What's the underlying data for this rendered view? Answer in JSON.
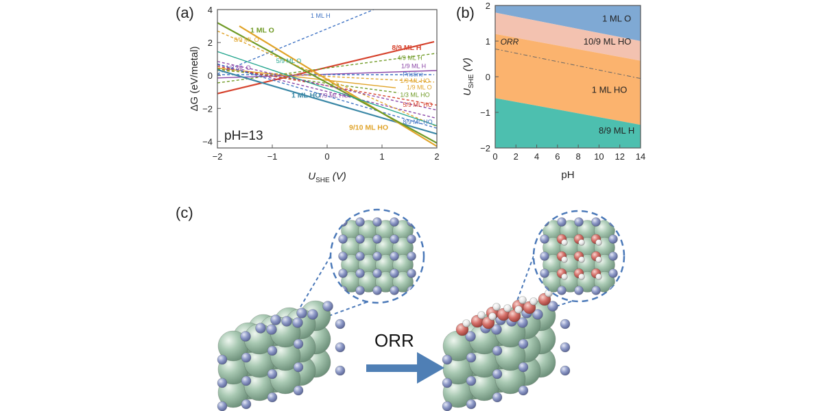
{
  "panels": {
    "a": "(a)",
    "b": "(b)",
    "c": "(c)"
  },
  "chart_data": [
    {
      "id": "a",
      "type": "line",
      "xlabel_main": "U",
      "xlabel_sub": "SHE",
      "xlabel_unit": "(V)",
      "ylabel": "ΔG (eV/metal)",
      "xlim": [
        -2,
        2
      ],
      "ylim": [
        -4.4,
        4
      ],
      "xticks": [
        -2,
        -1,
        0,
        1,
        2
      ],
      "yticks": [
        -4,
        -2,
        0,
        2,
        4
      ],
      "inset_text": "pH=13",
      "series": [
        {
          "name": "1 ML H",
          "color": "#3f73c4",
          "dash": true,
          "bold": false,
          "x": [
            -2,
            0.85
          ],
          "y": [
            0.1,
            4.0
          ],
          "label_x": -0.3,
          "label_y": 3.5
        },
        {
          "name": "8/9 ML H",
          "color": "#d6432e",
          "dash": false,
          "bold": true,
          "x": [
            -2,
            1.95
          ],
          "y": [
            -1.1,
            2.05
          ],
          "label_x": 1.18,
          "label_y": 1.55
        },
        {
          "name": "4/9 ML H",
          "color": "#6f9a25",
          "dash": true,
          "bold": false,
          "x": [
            -2,
            2
          ],
          "y": [
            -0.45,
            1.35
          ],
          "label_x": 1.28,
          "label_y": 0.95
        },
        {
          "name": "1/9 ML H",
          "color": "#8a45a6",
          "dash": false,
          "bold": false,
          "x": [
            -2,
            2
          ],
          "y": [
            -0.15,
            0.3
          ],
          "label_x": 1.35,
          "label_y": 0.45
        },
        {
          "name": "Pristine",
          "color": "#3f73c4",
          "dash": true,
          "bold": false,
          "x": [
            -2,
            1.95
          ],
          "y": [
            0.05,
            0.05
          ],
          "label_x": 1.38,
          "label_y": -0.05
        },
        {
          "name": "1/9 ML HO",
          "color": "#e0a328",
          "dash": true,
          "bold": false,
          "x": [
            -2,
            1.95
          ],
          "y": [
            0.3,
            -0.4
          ],
          "label_x": 1.33,
          "label_y": -0.45
        },
        {
          "name": "1/9 ML O",
          "color": "#e0a328",
          "dash": false,
          "bold": false,
          "x": [
            -2,
            1.25
          ],
          "y": [
            0.45,
            -0.75
          ],
          "label_x": 1.45,
          "label_y": -0.85
        },
        {
          "name": "1/3 ML HO",
          "color": "#6f9a25",
          "dash": true,
          "bold": false,
          "x": [
            -2,
            1.3
          ],
          "y": [
            0.4,
            -1.05
          ],
          "label_x": 1.33,
          "label_y": -1.3
        },
        {
          "name": "5/9 ML HO",
          "color": "#d6432e",
          "dash": true,
          "bold": false,
          "x": [
            -2,
            2
          ],
          "y": [
            0.55,
            -1.8
          ],
          "label_x": 1.38,
          "label_y": -1.9
        },
        {
          "name": "7/9 ML HO",
          "color": "#8a45a6",
          "dash": true,
          "bold": false,
          "x": [
            -2,
            2
          ],
          "y": [
            0.65,
            -2.6
          ],
          "label_x": -0.15,
          "label_y": -1.35
        },
        {
          "name": "8/9 ML HO",
          "color": "#3f73c4",
          "dash": true,
          "bold": false,
          "x": [
            -2,
            2
          ],
          "y": [
            0.7,
            -3.2
          ],
          "label_x": 1.38,
          "label_y": -2.95
        },
        {
          "name": "1 ML HO",
          "color": "#3a87a6",
          "dash": false,
          "bold": true,
          "x": [
            -2,
            2
          ],
          "y": [
            0.35,
            -3.55
          ],
          "label_x": -0.65,
          "label_y": -1.35
        },
        {
          "name": "9/10 ML HO",
          "color": "#e0a328",
          "dash": false,
          "bold": true,
          "x": [
            -1.6,
            2
          ],
          "y": [
            3.0,
            -4.3
          ],
          "label_x": 0.4,
          "label_y": -3.3
        },
        {
          "name": "1 ML O",
          "color": "#6f9a25",
          "dash": false,
          "bold": true,
          "x": [
            -2,
            2
          ],
          "y": [
            3.2,
            -4.1
          ],
          "label_x": -1.4,
          "label_y": 2.6
        },
        {
          "name": "8/9 ML O",
          "color": "#e0a328",
          "dash": true,
          "bold": false,
          "x": [
            -2,
            2
          ],
          "y": [
            2.7,
            -3.1
          ],
          "label_x": -1.7,
          "label_y": 2.05
        },
        {
          "name": "5/9 ML O",
          "color": "#23a58e",
          "dash": false,
          "bold": false,
          "x": [
            -2,
            2
          ],
          "y": [
            1.45,
            -3.05
          ],
          "label_x": -0.93,
          "label_y": 0.75
        },
        {
          "name": "1/3 ML O",
          "color": "#8a45a6",
          "dash": true,
          "bold": false,
          "x": [
            -2,
            2
          ],
          "y": [
            0.85,
            -2.1
          ],
          "label_x": -1.85,
          "label_y": 0.35
        }
      ]
    },
    {
      "id": "b",
      "type": "area",
      "xlabel": "pH",
      "ylabel_main": "U",
      "ylabel_sub": "SHE",
      "ylabel_unit": "(V)",
      "xlim": [
        0,
        14
      ],
      "ylim": [
        -2,
        2
      ],
      "xticks": [
        0,
        2,
        4,
        6,
        8,
        10,
        12,
        14
      ],
      "yticks": [
        -2,
        -1,
        0,
        1,
        2
      ],
      "orr_line": {
        "label": "ORR",
        "color": "#d6432e",
        "x": [
          0,
          14
        ],
        "y": [
          0.78,
          -0.05
        ]
      },
      "boundaries": [
        {
          "between": "1 ML O / 10/9 ML HO",
          "x": [
            0,
            14
          ],
          "y": [
            1.8,
            1.0
          ]
        },
        {
          "between": "10/9 ML HO / 1 ML HO",
          "x": [
            0,
            14
          ],
          "y": [
            1.2,
            0.45
          ]
        },
        {
          "between": "1 ML HO / 8/9 ML H",
          "x": [
            0,
            14
          ],
          "y": [
            -0.6,
            -1.35
          ]
        }
      ],
      "regions": [
        {
          "name": "1 ML O",
          "color": "#7fa9d4",
          "label_x": 11.7,
          "label_y": 1.55
        },
        {
          "name": "10/9 ML HO",
          "color": "#f3c2b0",
          "label_x": 10.8,
          "label_y": 0.9
        },
        {
          "name": "1 ML HO",
          "color": "#fbb36e",
          "label_x": 11.0,
          "label_y": -0.45
        },
        {
          "name": "8/9 ML H",
          "color": "#4dbfaf",
          "label_x": 11.7,
          "label_y": -1.6
        }
      ]
    }
  ],
  "panel_c": {
    "arrow_label": "ORR",
    "colors": {
      "metal": "#9fc3ab",
      "small_atom": "#8e9ac5",
      "oxygen": "#d2706a",
      "hydrogen": "#ececec",
      "dashed": "#4a78b8",
      "arrow": "#4f7fb5"
    }
  }
}
